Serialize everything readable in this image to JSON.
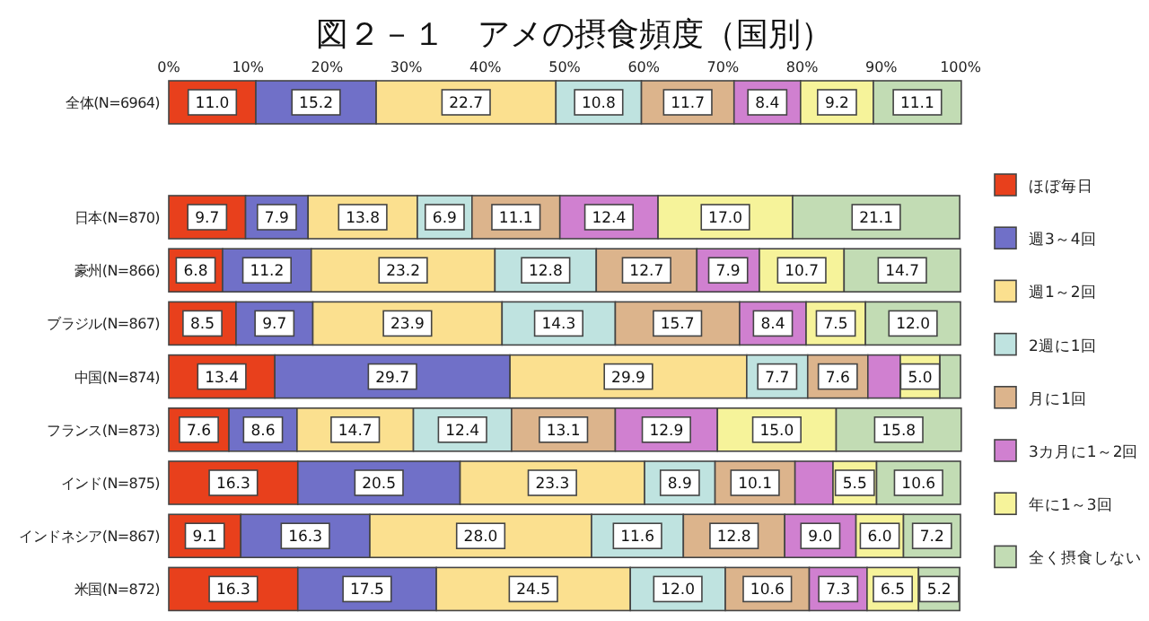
{
  "chart_data": {
    "type": "bar",
    "orientation": "horizontal",
    "stacked": true,
    "title": "図２－１　アメの摂食頻度（国別）",
    "categories": [
      "全体(N=6964)",
      "日本(N=870)",
      "豪州(N=866)",
      "ブラジル(N=867)",
      "中国(N=874)",
      "フランス(N=873)",
      "インド(N=875)",
      "インドネシア(N=867)",
      "米国(N=872)"
    ],
    "xlim": [
      0,
      100
    ],
    "xticks": [
      {
        "value": 0,
        "label": "0%"
      },
      {
        "value": 10,
        "label": "10%"
      },
      {
        "value": 20,
        "label": "20%"
      },
      {
        "value": 30,
        "label": "30%"
      },
      {
        "value": 40,
        "label": "40%"
      },
      {
        "value": 50,
        "label": "50%"
      },
      {
        "value": 60,
        "label": "60%"
      },
      {
        "value": 70,
        "label": "70%"
      },
      {
        "value": 80,
        "label": "80%"
      },
      {
        "value": 90,
        "label": "90%"
      },
      {
        "value": 100,
        "label": "100%"
      }
    ],
    "grid": false,
    "legend": "right",
    "series": [
      {
        "name": "ほぼ毎日",
        "color": "#e8401c",
        "values": [
          11.0,
          9.7,
          6.8,
          8.5,
          13.4,
          7.6,
          16.3,
          9.1,
          16.3
        ],
        "value_labels": [
          "11.0",
          "9.7",
          "6.8",
          "8.5",
          "13.4",
          "7.6",
          "16.3",
          "9.1",
          "16.3"
        ]
      },
      {
        "name": "週3～4回",
        "color": "#7070c8",
        "values": [
          15.2,
          7.9,
          11.2,
          9.7,
          29.7,
          8.6,
          20.5,
          16.3,
          17.5
        ],
        "value_labels": [
          "15.2",
          "7.9",
          "11.2",
          "9.7",
          "29.7",
          "8.6",
          "20.5",
          "16.3",
          "17.5"
        ]
      },
      {
        "name": "週1～2回",
        "color": "#fbe08f",
        "values": [
          22.7,
          13.8,
          23.2,
          23.9,
          29.9,
          14.7,
          23.3,
          28.0,
          24.5
        ],
        "value_labels": [
          "22.7",
          "13.8",
          "23.2",
          "23.9",
          "29.9",
          "14.7",
          "23.3",
          "28.0",
          "24.5"
        ]
      },
      {
        "name": "2週に1回",
        "color": "#bfe3e0",
        "values": [
          10.8,
          6.9,
          12.8,
          14.3,
          7.7,
          12.4,
          8.9,
          11.6,
          12.0
        ],
        "value_labels": [
          "10.8",
          "6.9",
          "12.8",
          "14.3",
          "7.7",
          "12.4",
          "8.9",
          "11.6",
          "12.0"
        ]
      },
      {
        "name": "月に1回",
        "color": "#dcb48c",
        "values": [
          11.7,
          11.1,
          12.7,
          15.7,
          7.6,
          13.1,
          10.1,
          12.8,
          10.6
        ],
        "value_labels": [
          "11.7",
          "11.1",
          "12.7",
          "15.7",
          "7.6",
          "13.1",
          "10.1",
          "12.8",
          "10.6"
        ]
      },
      {
        "name": "3カ月に1～2回",
        "color": "#d080d0",
        "values": [
          8.4,
          12.4,
          7.9,
          8.4,
          4.1,
          12.9,
          4.8,
          9.0,
          7.3
        ],
        "value_labels": [
          "8.4",
          "12.4",
          "7.9",
          "8.4",
          null,
          "12.9",
          null,
          "9.0",
          "7.3"
        ]
      },
      {
        "name": "年に1～3回",
        "color": "#f6f39a",
        "values": [
          9.2,
          17.0,
          10.7,
          7.5,
          5.0,
          15.0,
          5.5,
          6.0,
          6.5
        ],
        "value_labels": [
          "9.2",
          "17.0",
          "10.7",
          "7.5",
          "5.0",
          "15.0",
          "5.5",
          "6.0",
          "6.5"
        ]
      },
      {
        "name": "全く摂食しない",
        "color": "#c2dcb4",
        "values": [
          11.1,
          21.1,
          14.7,
          12.0,
          2.6,
          15.8,
          10.6,
          7.2,
          5.2
        ],
        "value_labels": [
          "11.1",
          "21.1",
          "14.7",
          "12.0",
          null,
          "15.8",
          "10.6",
          "7.2",
          "5.2"
        ]
      }
    ]
  }
}
